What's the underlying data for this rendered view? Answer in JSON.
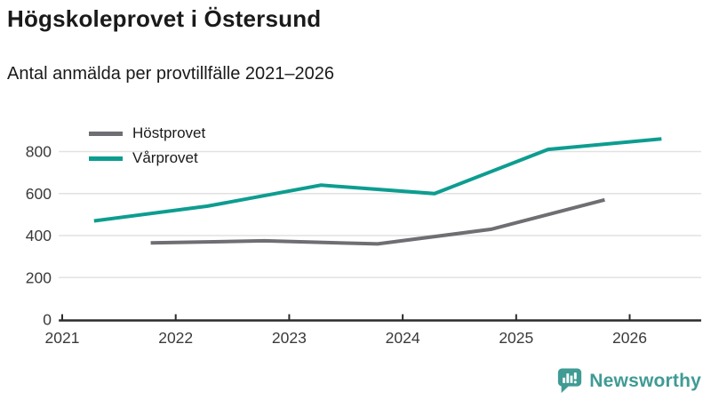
{
  "header": {
    "title": "Högskoleprovet i Östersund",
    "subtitle": "Antal anmälda per provtillfälle 2021–2026"
  },
  "chart_data": {
    "type": "line",
    "title": "Högskoleprovet i Östersund",
    "subtitle": "Antal anmälda per provtillfälle 2021–2026",
    "xlabel": "",
    "ylabel": "",
    "series": [
      {
        "name": "Höstprovet",
        "color": "#6e6e73",
        "x": [
          2021.78,
          2022.78,
          2023.78,
          2024.78,
          2025.78
        ],
        "values": [
          365,
          375,
          360,
          430,
          570
        ]
      },
      {
        "name": "Vårprovet",
        "color": "#0d9d90",
        "x": [
          2021.28,
          2022.28,
          2023.28,
          2024.28,
          2025.28,
          2026.28
        ],
        "values": [
          470,
          540,
          640,
          600,
          810,
          860
        ]
      }
    ],
    "xticks": [
      2021,
      2022,
      2023,
      2024,
      2025,
      2026
    ],
    "yticks": [
      0,
      200,
      400,
      600,
      800
    ],
    "xlim": [
      2020.97,
      2026.63
    ],
    "ylim": [
      0,
      950
    ],
    "grid": "horizontal",
    "gridline_color": "#e2e2e2",
    "axis_color": "#2b2b2b",
    "tick_label_color": "#3a3a3a",
    "legend_position": "top-left"
  },
  "footer": {
    "brand": "Newsworthy",
    "brand_color": "#3f9b94",
    "logo_icon": "bar-chart-speech-bubble-icon"
  }
}
